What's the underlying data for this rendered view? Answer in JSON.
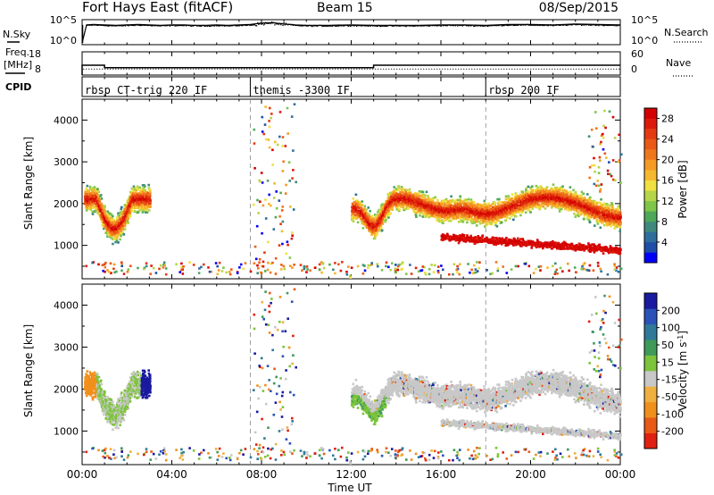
{
  "header": {
    "station": "Fort Hays East (fitACF)",
    "beam": "Beam 15",
    "date": "08/Sep/2015"
  },
  "time_axis": {
    "label": "Time UT",
    "range_hours": [
      0,
      24
    ],
    "ticks": [
      "00:00",
      "04:00",
      "08:00",
      "12:00",
      "16:00",
      "20:00",
      "00:00"
    ],
    "tick_hours": [
      0,
      4,
      8,
      12,
      16,
      20,
      24
    ]
  },
  "colors": {
    "data_dot": "#000000",
    "mode_line": "#000000",
    "ground_scatter": "#c8c8c8"
  },
  "chart_data": [
    {
      "type": "scatter",
      "name_left": "N.Sky",
      "name_right": "N.Search",
      "left_ticks": [
        "10^5",
        "10^0"
      ],
      "right_ticks": [
        "10^5",
        "10^0"
      ],
      "x_hours": [
        0.0,
        0.2,
        0.5,
        1.0,
        1.5,
        2.0,
        2.5,
        3.0,
        3.5,
        4.0,
        4.5,
        5.0,
        5.5,
        6.0,
        6.5,
        7.0,
        7.5,
        8.0,
        8.5,
        9.0,
        9.5,
        10.0,
        11.0,
        12.0,
        13.0,
        14.0,
        15.0,
        16.0,
        17.0,
        18.0,
        19.0,
        20.0,
        21.0,
        22.0,
        23.0,
        24.0
      ],
      "nsky_log": [
        0.0,
        4.2,
        4.3,
        4.2,
        4.1,
        4.2,
        4.3,
        4.2,
        4.1,
        4.2,
        4.2,
        4.1,
        4.1,
        4.2,
        4.1,
        4.2,
        4.3,
        4.6,
        4.7,
        4.4,
        4.2,
        4.1,
        4.1,
        4.2,
        4.1,
        4.1,
        4.1,
        4.2,
        4.2,
        4.1,
        4.3,
        4.3,
        4.2,
        4.4,
        4.3,
        4.2
      ]
    },
    {
      "type": "line",
      "name_left_1": "Freq.",
      "name_left_2": "[MHz]",
      "name_right": "Nave",
      "left_ticks": [
        "18",
        "8"
      ],
      "right_ticks": [
        "60",
        "0"
      ],
      "freq_segments": [
        {
          "start": 0.0,
          "end": 1.0,
          "freq": 12.0
        },
        {
          "start": 1.0,
          "end": 13.0,
          "freq": 10.6
        },
        {
          "start": 13.0,
          "end": 24.0,
          "freq": 12.0
        }
      ],
      "nave_level": 11.0
    },
    {
      "type": "table",
      "label": "CPID",
      "modes": [
        {
          "start_hour": 0.0,
          "name": "rbsp CT-trig 220 IF"
        },
        {
          "start_hour": 7.5,
          "name": "themis -3300 IF"
        },
        {
          "start_hour": 18.0,
          "name": "rbsp 200 IF"
        }
      ]
    },
    {
      "type": "heatmap",
      "ylabel": "Slant Range [km]",
      "ylim": [
        200,
        4500
      ],
      "yticks": [
        1000,
        2000,
        3000,
        4000
      ],
      "colorbar": {
        "label": "Power [dB]",
        "ticks": [
          4,
          8,
          12,
          16,
          20,
          24,
          28
        ],
        "range": [
          0,
          30
        ],
        "colors": [
          "#0000ff",
          "#1f4ea8",
          "#2e6e9e",
          "#3f8a7c",
          "#4ea85a",
          "#7ec64a",
          "#b5d54a",
          "#f0e040",
          "#f6b82e",
          "#f59a24",
          "#f0781c",
          "#ea5a16",
          "#e43a10",
          "#dd1a0a",
          "#d40000"
        ]
      }
    },
    {
      "type": "heatmap",
      "ylabel": "Slant Range [km]",
      "ylim": [
        200,
        4500
      ],
      "yticks": [
        1000,
        2000,
        3000,
        4000
      ],
      "colorbar": {
        "label": "Velocity [m s^-1]",
        "ticks": [
          "200",
          "100",
          "50",
          "15",
          "-15",
          "-50",
          "-100",
          "-200"
        ],
        "colors": [
          "#1a1aa0",
          "#2a52b8",
          "#2f7a98",
          "#3f9a5a",
          "#7cc43a",
          "#c8c8c8",
          "#f0b040",
          "#f0901c",
          "#e85a16",
          "#e02010"
        ]
      }
    }
  ]
}
